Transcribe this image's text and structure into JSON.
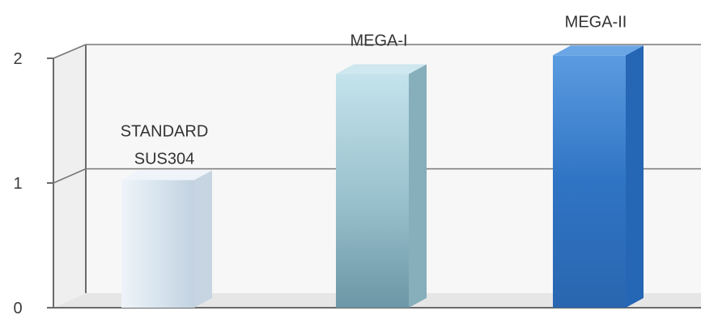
{
  "chart_data": {
    "type": "bar",
    "style": "3d-column",
    "categories": [
      "STANDARD SUS304",
      "MEGA-I",
      "MEGA-II"
    ],
    "category_lines": [
      [
        "STANDARD",
        "SUS304"
      ],
      [
        "MEGA-I"
      ],
      [
        "MEGA-II"
      ]
    ],
    "values": [
      1.05,
      1.9,
      2.05
    ],
    "yticks": [
      "0",
      "1",
      "2"
    ],
    "ylim": [
      0,
      2
    ],
    "grid": true,
    "legend": "none",
    "colors": {
      "standard": "#d6e3ee",
      "mega1": "#9fcad6",
      "mega2": "#2f74c4",
      "frame": "#6a6a6a",
      "wall": "#f6f6f6"
    }
  }
}
